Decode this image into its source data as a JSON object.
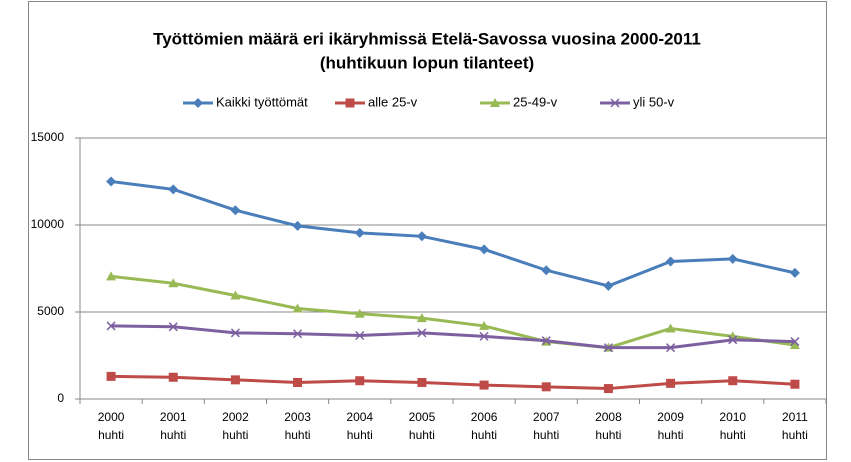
{
  "chart_data": {
    "type": "line",
    "title": "Työttömien määrä eri ikäryhmissä Etelä-Savossa vuosina 2000-2011",
    "subtitle": "(huhtikuun lopun tilanteet)",
    "categories": [
      "2000 huhti",
      "2001 huhti",
      "2002 huhti",
      "2003 huhti",
      "2004 huhti",
      "2005 huhti",
      "2006 huhti",
      "2007 huhti",
      "2008 huhti",
      "2009 huhti",
      "2010 huhti",
      "2011 huhti"
    ],
    "series": [
      {
        "name": "Kaikki työttömät",
        "color": "#4a7ebb",
        "marker": "diamond",
        "values": [
          12500,
          12050,
          10850,
          9950,
          9550,
          9350,
          8600,
          7400,
          6500,
          7900,
          8050,
          7250
        ]
      },
      {
        "name": "alle 25-v",
        "color": "#be4b48",
        "marker": "square",
        "values": [
          1300,
          1250,
          1100,
          950,
          1050,
          950,
          800,
          700,
          600,
          900,
          1050,
          850
        ]
      },
      {
        "name": "25-49-v",
        "color": "#98b954",
        "marker": "triangle",
        "values": [
          7050,
          6650,
          5950,
          5200,
          4900,
          4650,
          4200,
          3300,
          2950,
          4050,
          3600,
          3100
        ]
      },
      {
        "name": "yli 50-v",
        "color": "#7d60a0",
        "marker": "x",
        "values": [
          4200,
          4150,
          3800,
          3750,
          3650,
          3800,
          3600,
          3350,
          2950,
          2950,
          3400,
          3300
        ]
      }
    ],
    "ylim": [
      0,
      15000
    ],
    "yticks": [
      0,
      5000,
      10000,
      15000
    ],
    "grid": true,
    "legend": "top"
  }
}
